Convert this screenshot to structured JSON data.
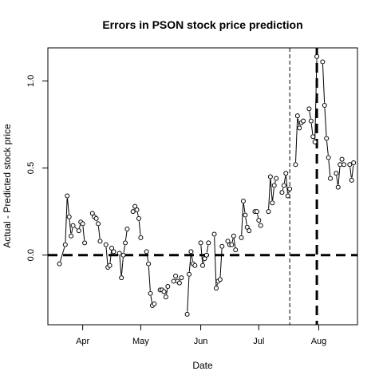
{
  "chart_data": {
    "type": "line",
    "title": "Errors in PSON stock price prediction",
    "xlabel": "Date",
    "ylabel": "Actual - Predicted stock price",
    "x_tick_labels": [
      "Apr",
      "May",
      "Jun",
      "Jul",
      "Aug"
    ],
    "x_tick_dates": [
      "2015-04-01",
      "2015-05-01",
      "2015-06-01",
      "2015-07-01",
      "2015-08-01"
    ],
    "x_range": [
      "2015-03-14",
      "2015-08-21"
    ],
    "y_tick_labels": [
      "0.0",
      "0.5",
      "1.0"
    ],
    "y_tick_values": [
      0.0,
      0.5,
      1.0
    ],
    "ylim": [
      -0.4,
      1.19
    ],
    "grid": false,
    "marker": "open-circle",
    "reference_lines": [
      {
        "orientation": "horizontal",
        "y": 0.0,
        "style": "thick-dashed"
      },
      {
        "orientation": "vertical",
        "x": "2015-07-17",
        "style": "thin-dashed"
      },
      {
        "orientation": "vertical",
        "x": "2015-07-31",
        "style": "thick-dashed"
      }
    ],
    "segments": [
      {
        "x": [
          "2015-03-20",
          "2015-03-23",
          "2015-03-24",
          "2015-03-25",
          "2015-03-26",
          "2015-03-27",
          "2015-03-30",
          "2015-03-31",
          "2015-04-01",
          "2015-04-02"
        ],
        "y": [
          -0.05,
          0.06,
          0.34,
          0.22,
          0.11,
          0.17,
          0.14,
          0.19,
          0.18,
          0.07
        ]
      },
      {
        "x": [
          "2015-04-06",
          "2015-04-07",
          "2015-04-08",
          "2015-04-09",
          "2015-04-10"
        ],
        "y": [
          0.24,
          0.22,
          0.21,
          0.18,
          0.08
        ]
      },
      {
        "x": [
          "2015-04-13",
          "2015-04-14",
          "2015-04-15",
          "2015-04-16",
          "2015-04-17"
        ],
        "y": [
          0.06,
          -0.07,
          -0.06,
          0.04,
          0.02
        ]
      },
      {
        "x": [
          "2015-04-20",
          "2015-04-21",
          "2015-04-22",
          "2015-04-23",
          "2015-04-24"
        ],
        "y": [
          0.01,
          -0.13,
          0.0,
          0.07,
          0.15
        ]
      },
      {
        "x": [
          "2015-04-27",
          "2015-04-28",
          "2015-04-29",
          "2015-04-30",
          "2015-05-01"
        ],
        "y": [
          0.25,
          0.28,
          0.26,
          0.21,
          0.1
        ]
      },
      {
        "x": [
          "2015-05-04",
          "2015-05-05",
          "2015-05-06",
          "2015-05-07",
          "2015-05-08"
        ],
        "y": [
          0.02,
          -0.05,
          -0.22,
          -0.29,
          -0.28
        ]
      },
      {
        "x": [
          "2015-05-11",
          "2015-05-12",
          "2015-05-13",
          "2015-05-14",
          "2015-05-15"
        ],
        "y": [
          -0.2,
          -0.2,
          -0.21,
          -0.24,
          -0.18
        ]
      },
      {
        "x": [
          "2015-05-18",
          "2015-05-19",
          "2015-05-20",
          "2015-05-21",
          "2015-05-22"
        ],
        "y": [
          -0.15,
          -0.12,
          -0.15,
          -0.16,
          -0.13
        ]
      },
      {
        "x": [
          "2015-05-25",
          "2015-05-26",
          "2015-05-27",
          "2015-05-28",
          "2015-05-29"
        ],
        "y": [
          -0.34,
          -0.11,
          0.02,
          -0.05,
          -0.06
        ]
      },
      {
        "x": [
          "2015-06-01",
          "2015-06-02",
          "2015-06-03",
          "2015-06-04",
          "2015-06-05"
        ],
        "y": [
          0.07,
          -0.06,
          -0.02,
          0.0,
          0.07
        ]
      },
      {
        "x": [
          "2015-06-08",
          "2015-06-09",
          "2015-06-10",
          "2015-06-11",
          "2015-06-12"
        ],
        "y": [
          0.12,
          -0.19,
          -0.15,
          -0.14,
          0.05
        ]
      },
      {
        "x": [
          "2015-06-15",
          "2015-06-16",
          "2015-06-17",
          "2015-06-18",
          "2015-06-19"
        ],
        "y": [
          0.08,
          0.06,
          0.06,
          0.11,
          0.03
        ]
      },
      {
        "x": [
          "2015-06-22",
          "2015-06-23",
          "2015-06-24",
          "2015-06-25",
          "2015-06-26"
        ],
        "y": [
          0.1,
          0.31,
          0.23,
          0.16,
          0.14
        ]
      },
      {
        "x": [
          "2015-06-29",
          "2015-06-30",
          "2015-07-01",
          "2015-07-02"
        ],
        "y": [
          0.25,
          0.25,
          0.2,
          0.17
        ]
      },
      {
        "x": [
          "2015-07-06",
          "2015-07-07",
          "2015-07-08",
          "2015-07-09",
          "2015-07-10"
        ],
        "y": [
          0.25,
          0.45,
          0.3,
          0.4,
          0.44
        ]
      },
      {
        "x": [
          "2015-07-13",
          "2015-07-14",
          "2015-07-15",
          "2015-07-16",
          "2015-07-17"
        ],
        "y": [
          0.36,
          0.4,
          0.47,
          0.34,
          0.38
        ]
      },
      {
        "x": [
          "2015-07-20",
          "2015-07-21",
          "2015-07-22",
          "2015-07-23",
          "2015-07-24"
        ],
        "y": [
          0.52,
          0.8,
          0.73,
          0.76,
          0.77
        ]
      },
      {
        "x": [
          "2015-07-27",
          "2015-07-28",
          "2015-07-29",
          "2015-07-30",
          "2015-07-31"
        ],
        "y": [
          0.84,
          0.77,
          0.68,
          0.65,
          1.14
        ]
      },
      {
        "x": [
          "2015-08-03",
          "2015-08-04",
          "2015-08-05",
          "2015-08-06",
          "2015-08-07"
        ],
        "y": [
          1.11,
          0.86,
          0.67,
          0.56,
          0.44
        ]
      },
      {
        "x": [
          "2015-08-10",
          "2015-08-11",
          "2015-08-12",
          "2015-08-13",
          "2015-08-14"
        ],
        "y": [
          0.47,
          0.39,
          0.52,
          0.55,
          0.52
        ]
      },
      {
        "x": [
          "2015-08-17",
          "2015-08-18",
          "2015-08-19"
        ],
        "y": [
          0.52,
          0.43,
          0.53
        ]
      }
    ]
  }
}
